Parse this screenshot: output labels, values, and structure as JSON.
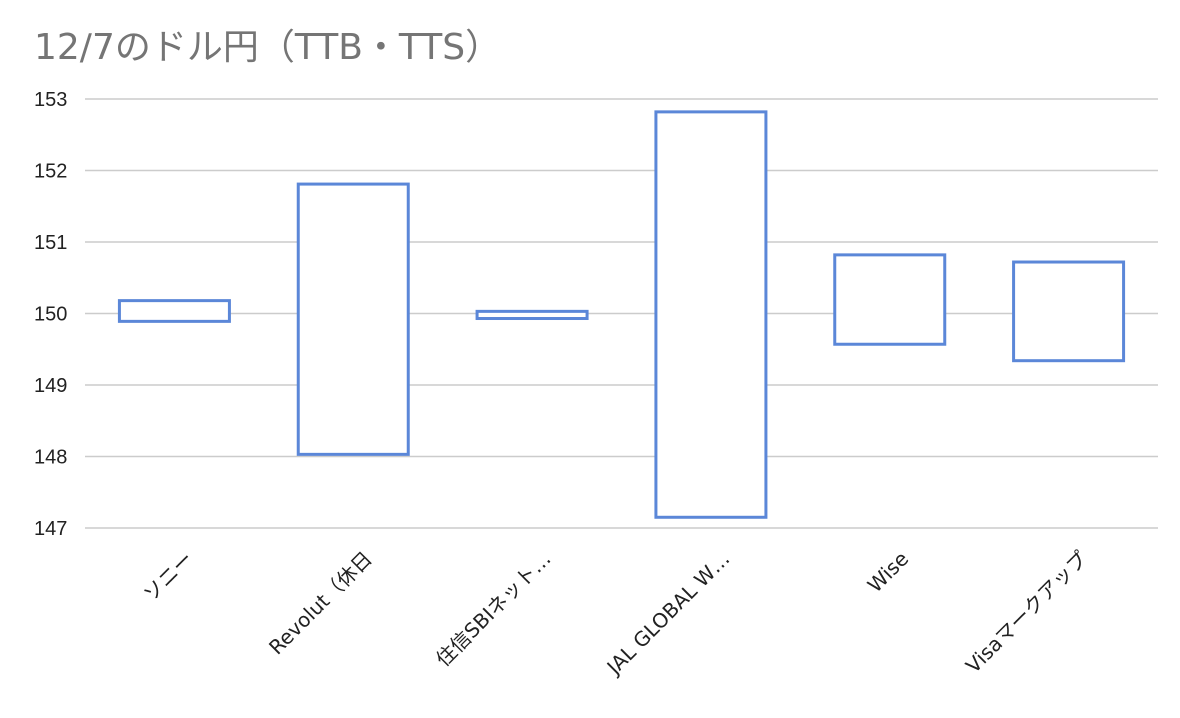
{
  "chart_title": "12/7のドル円（TTB・TTS）",
  "chart_data": {
    "type": "bar",
    "title": "12/7のドル円（TTB・TTS）",
    "xlabel": "",
    "ylabel": "",
    "categories": [
      "ソニー",
      "Revolut（休日",
      "住信SBIネット…",
      "JAL GLOBAL W…",
      "Wise",
      "Visaマークアップ"
    ],
    "series": [
      {
        "values": [
          149.89,
          148.03,
          149.93,
          147.15,
          149.57,
          149.34
        ]
      },
      {
        "values": [
          150.18,
          151.81,
          150.03,
          152.82,
          150.82,
          150.72
        ]
      }
    ],
    "y_ticks": [
      147,
      148,
      149,
      150,
      151,
      152,
      153
    ],
    "ylim": [
      147,
      153
    ],
    "grid": true,
    "legend": "none",
    "colors": {
      "box_stroke": "#5b87d8",
      "grid": "#cccccc"
    }
  }
}
